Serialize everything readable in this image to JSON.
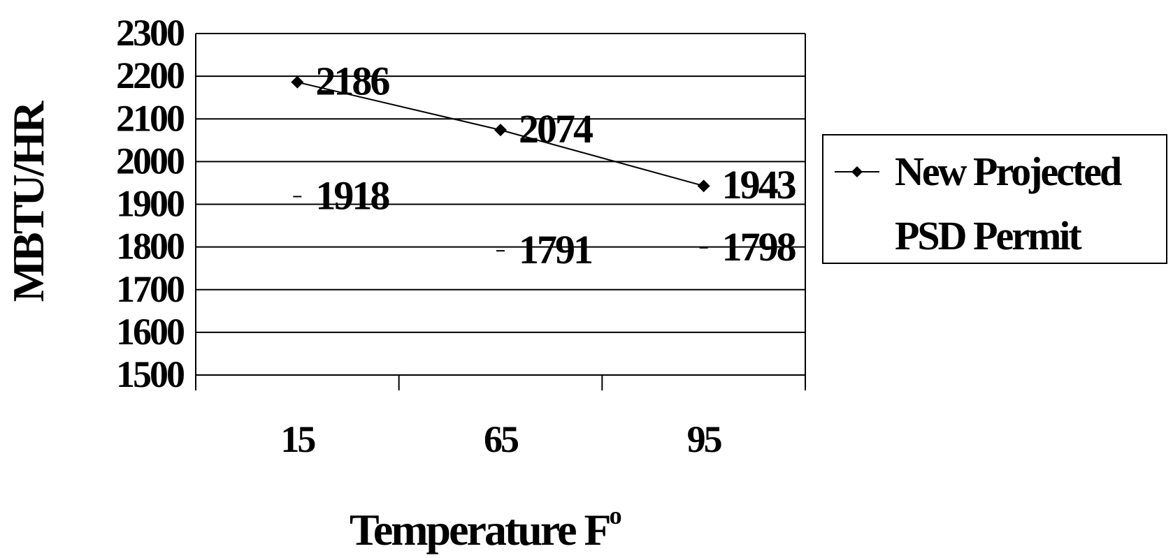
{
  "chart_data": {
    "type": "line",
    "title": "",
    "xlabel": "Temperature  F",
    "xlabel_superscript": "o",
    "ylabel": "MBTU/HR",
    "ylim": [
      1500,
      2300
    ],
    "yticks": [
      1500,
      1600,
      1700,
      1800,
      1900,
      2000,
      2100,
      2200,
      2300
    ],
    "categories": [
      "15",
      "65",
      "95"
    ],
    "grid": true,
    "legend_position": "right",
    "series": [
      {
        "name": "New Projected",
        "values": [
          2186,
          2074,
          1943
        ],
        "data_labels": [
          "2186",
          "2074",
          "1943"
        ],
        "marker": "diamond",
        "line": true
      },
      {
        "name": "PSD  Permit",
        "values": [
          1918,
          1791,
          1798
        ],
        "data_labels": [
          "1918",
          "1791",
          "1798"
        ],
        "marker": "dash",
        "line": false
      }
    ]
  }
}
